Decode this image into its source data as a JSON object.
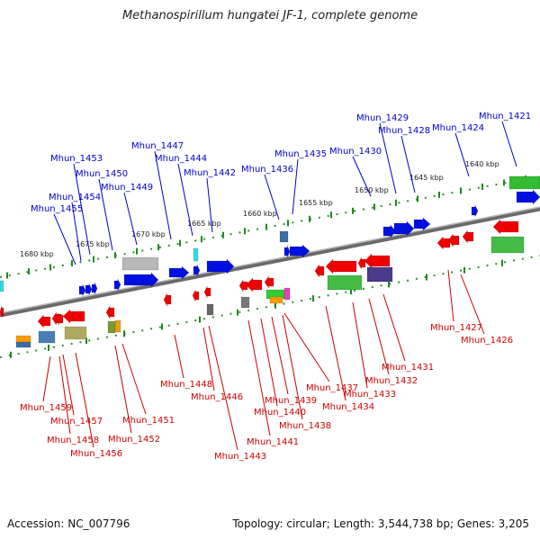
{
  "title": "Methanospirillum hungatei JF-1, complete genome",
  "footer": {
    "accession": "Accession: NC_007796",
    "topology": "Topology: circular; Length: 3,544,738 bp; Genes: 3,205"
  },
  "colors": {
    "top_label": "#0000cc",
    "bottom_label": "#cc0000",
    "backbone": "#808080",
    "tick": "#1a8a1a"
  },
  "scale_labels": [
    "1680 kbp",
    "1675 kbp",
    "1670 kbp",
    "1665 kbp",
    "1660 kbp",
    "1655 kbp",
    "1650 kbp",
    "1645 kbp",
    "1640 kbp"
  ],
  "top_genes": [
    "Mhun_1421",
    "Mhun_1424",
    "Mhun_1428",
    "Mhun_1429",
    "Mhun_1430",
    "Mhun_1435",
    "Mhun_1436",
    "Mhun_1442",
    "Mhun_1444",
    "Mhun_1447",
    "Mhun_1449",
    "Mhun_1450",
    "Mhun_1453",
    "Mhun_1454",
    "Mhun_1455"
  ],
  "bottom_genes": [
    "Mhun_1426",
    "Mhun_1427",
    "Mhun_1431",
    "Mhun_1432",
    "Mhun_1433",
    "Mhun_1434",
    "Mhun_1437",
    "Mhun_1438",
    "Mhun_1439",
    "Mhun_1440",
    "Mhun_1441",
    "Mhun_1443",
    "Mhun_1446",
    "Mhun_1448",
    "Mhun_1451",
    "Mhun_1452",
    "Mhun_1456",
    "Mhun_1457",
    "Mhun_1458",
    "Mhun_1459"
  ]
}
